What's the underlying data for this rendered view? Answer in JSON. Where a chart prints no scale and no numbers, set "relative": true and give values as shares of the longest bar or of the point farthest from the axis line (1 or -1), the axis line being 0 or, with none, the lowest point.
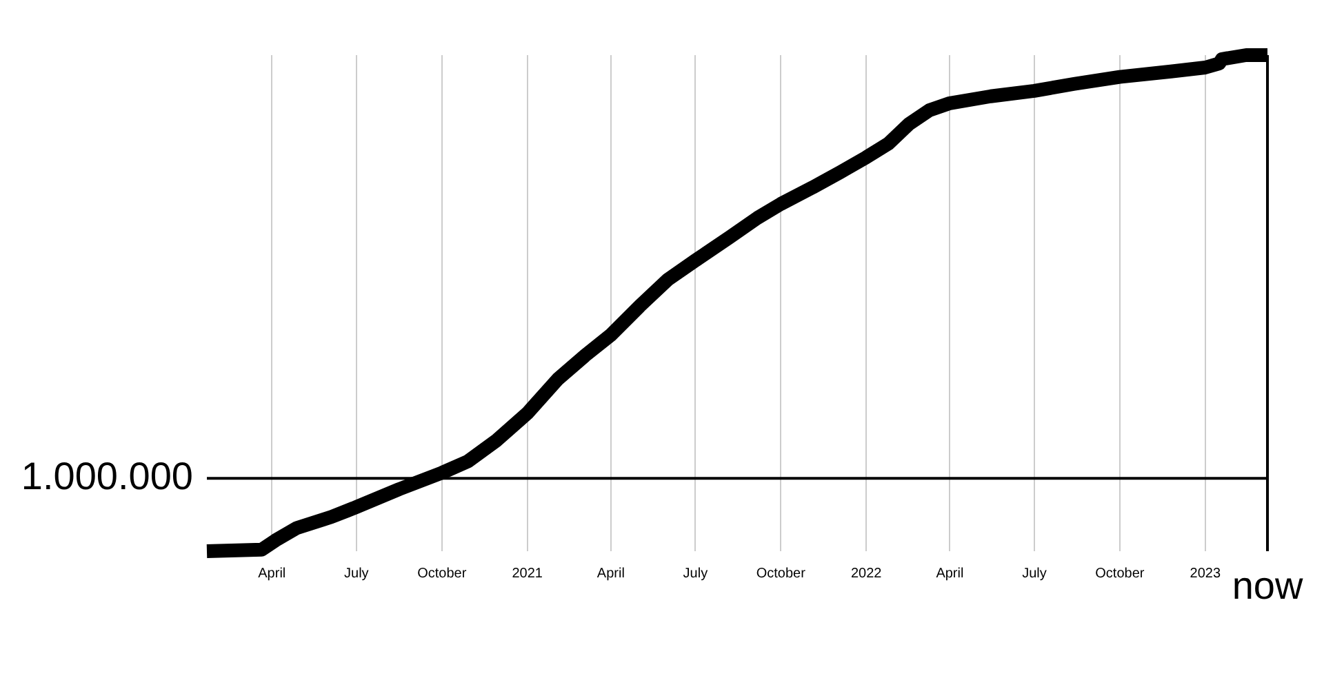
{
  "chart_data": {
    "type": "line",
    "relative": true,
    "color": "#000000",
    "grid": "x",
    "legend": false,
    "marker": "none",
    "line_style": "solid",
    "x": [
      "2020-01-22",
      "2020-03-21",
      "2020-04-05",
      "2020-04-28",
      "2020-06-04",
      "2020-07-01",
      "2020-08-16",
      "2020-10-01",
      "2020-10-29",
      "2020-11-28",
      "2021-01-01",
      "2021-02-03",
      "2021-03-04",
      "2021-04-01",
      "2021-05-02",
      "2021-06-01",
      "2021-07-01",
      "2021-08-07",
      "2021-09-06",
      "2021-10-01",
      "2021-11-04",
      "2021-12-04",
      "2022-01-01",
      "2022-01-25",
      "2022-02-16",
      "2022-03-10",
      "2022-04-01",
      "2022-05-15",
      "2022-07-01",
      "2022-08-13",
      "2022-10-01",
      "2022-11-25",
      "2023-01-01",
      "2023-01-16",
      "2023-01-19",
      "2023-02-14",
      "2023-03-09"
    ],
    "values": [
      0,
      0.003,
      0.022,
      0.047,
      0.069,
      0.089,
      0.125,
      0.158,
      0.181,
      0.222,
      0.278,
      0.347,
      0.394,
      0.436,
      0.494,
      0.547,
      0.586,
      0.633,
      0.672,
      0.7,
      0.733,
      0.764,
      0.794,
      0.822,
      0.861,
      0.889,
      0.903,
      0.917,
      0.928,
      0.942,
      0.956,
      0.967,
      0.975,
      0.983,
      0.992,
      1,
      1
    ],
    "xlim": [
      "2020-01-22",
      "2023-03-09"
    ],
    "xticks": [
      {
        "value": "2020-04-01",
        "label": "April"
      },
      {
        "value": "2020-07-01",
        "label": "July"
      },
      {
        "value": "2020-10-01",
        "label": "October"
      },
      {
        "value": "2021-01-01",
        "label": "2021"
      },
      {
        "value": "2021-04-01",
        "label": "April"
      },
      {
        "value": "2021-07-01",
        "label": "July"
      },
      {
        "value": "2021-10-01",
        "label": "October"
      },
      {
        "value": "2022-01-01",
        "label": "2022"
      },
      {
        "value": "2022-04-01",
        "label": "April"
      },
      {
        "value": "2022-07-01",
        "label": "July"
      },
      {
        "value": "2022-10-01",
        "label": "October"
      },
      {
        "value": "2023-01-01",
        "label": "2023"
      }
    ],
    "ref_lines": [
      {
        "axis": "y",
        "value": 0.147,
        "color": "#000000"
      },
      {
        "axis": "x",
        "value": "2023-03-09",
        "label": "now",
        "color": "#000000"
      }
    ],
    "annotations": [
      "1.000.000"
    ]
  }
}
